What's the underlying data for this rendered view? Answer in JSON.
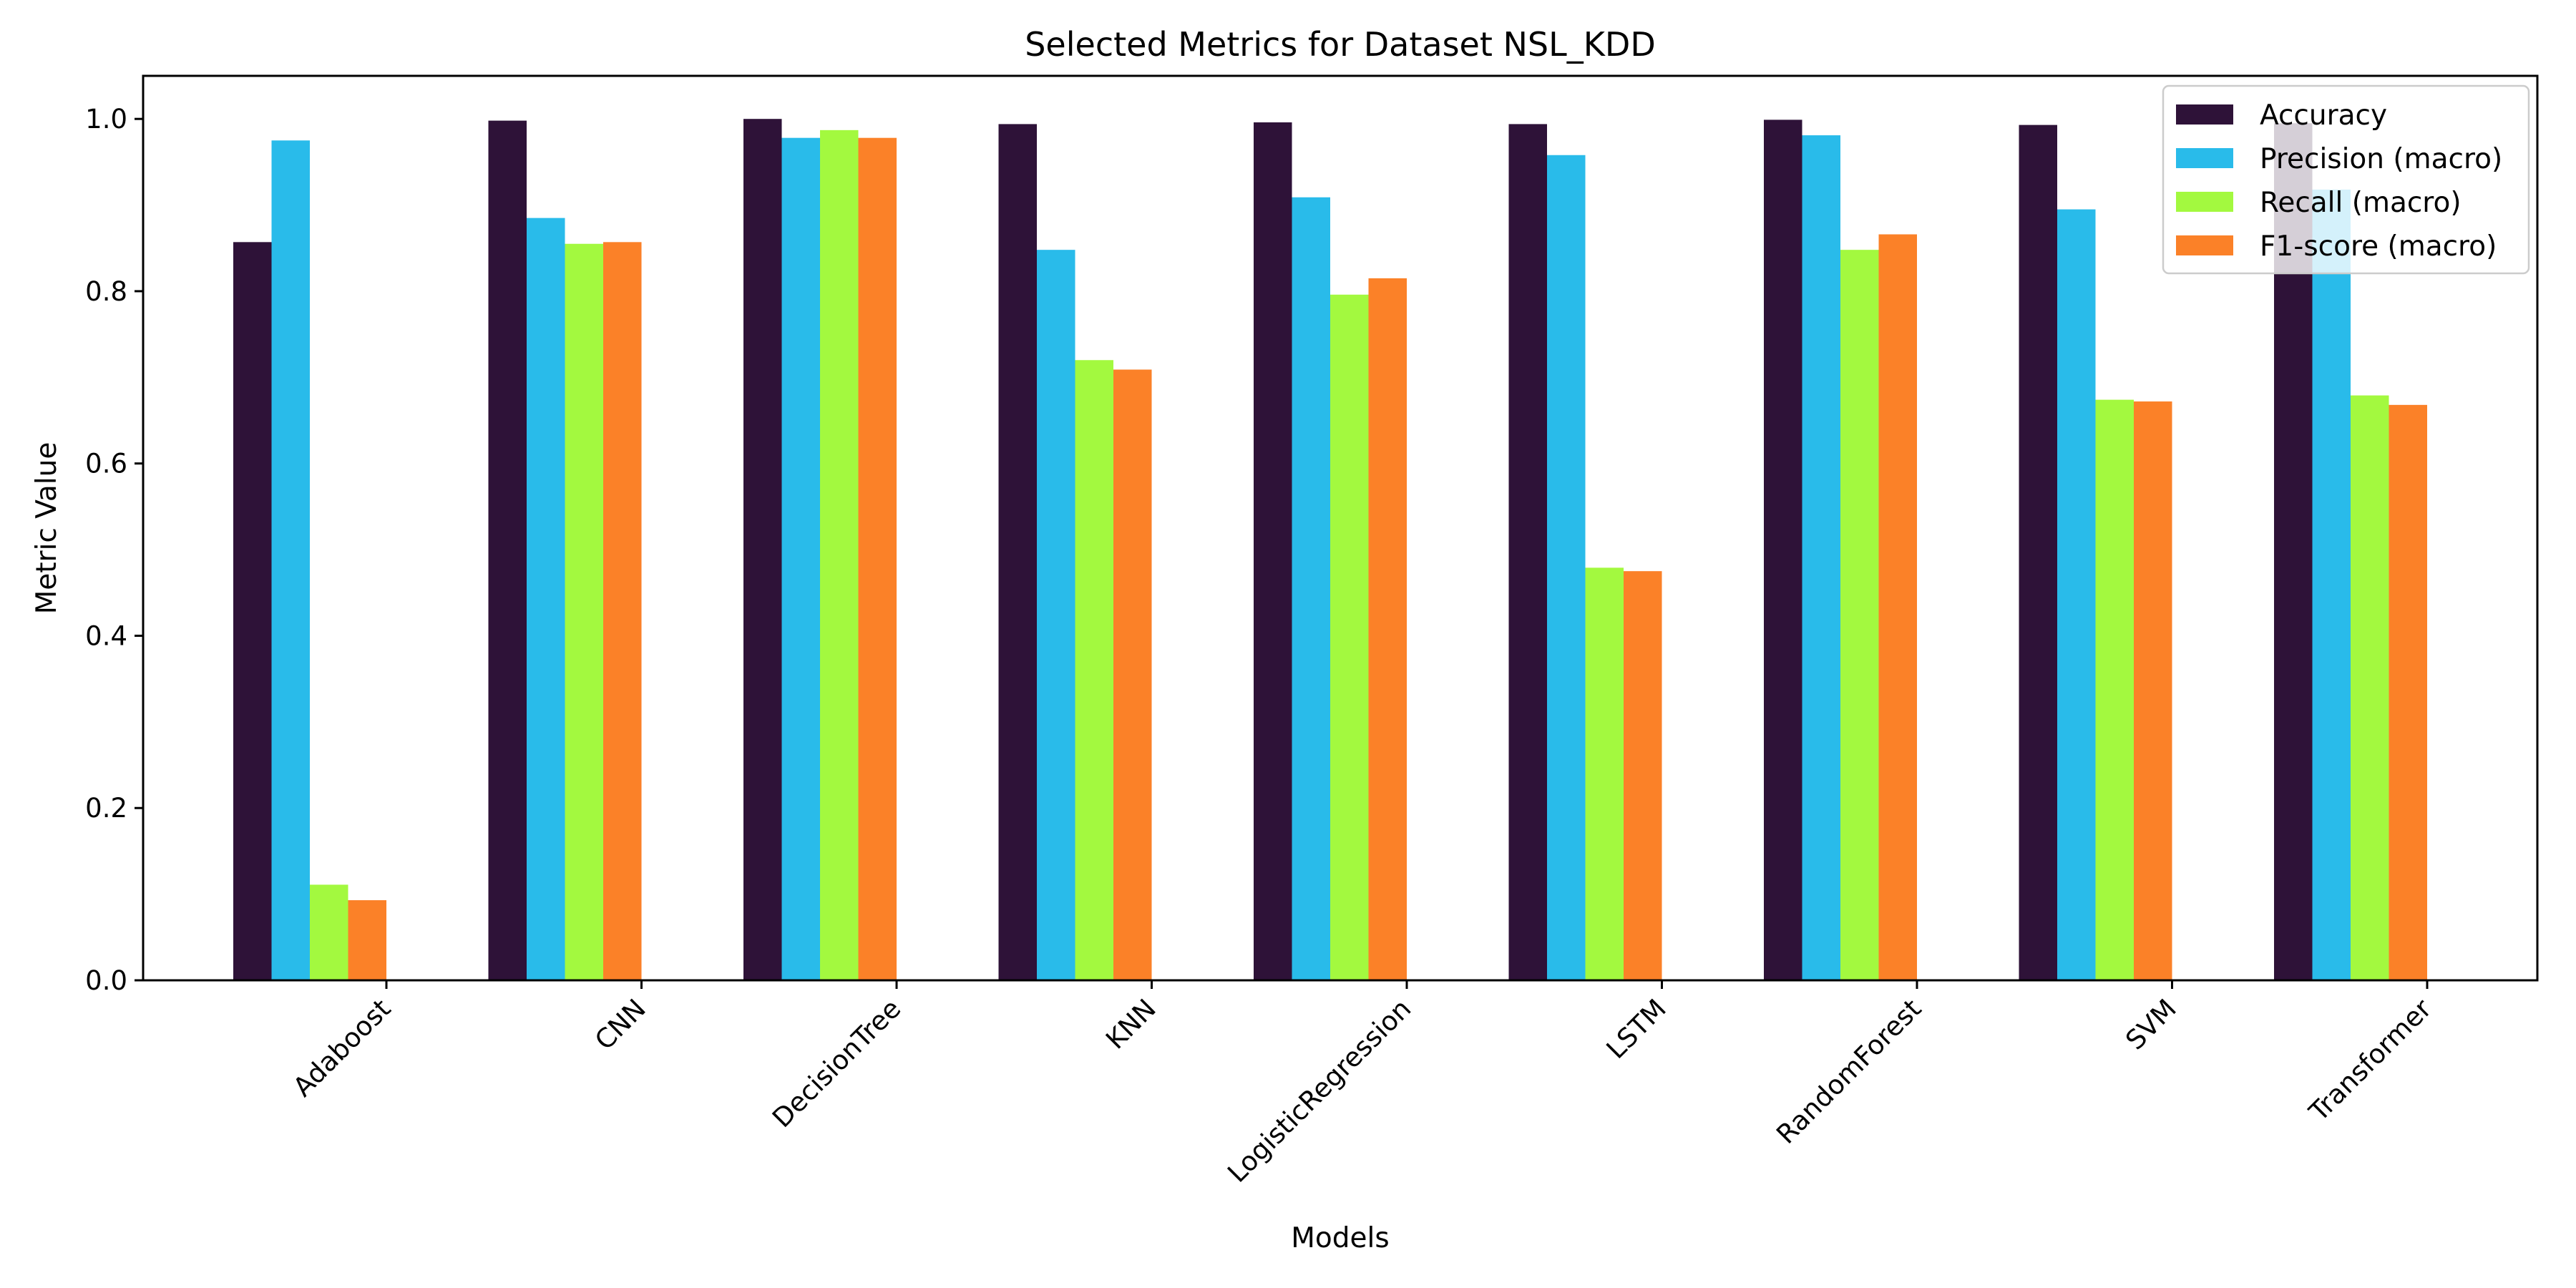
{
  "chart_data": {
    "type": "bar",
    "title": "Selected Metrics for Dataset NSL_KDD",
    "xlabel": "Models",
    "ylabel": "Metric Value",
    "ylim": [
      0,
      1.05
    ],
    "yticks": [
      "0.0",
      "0.2",
      "0.4",
      "0.6",
      "0.8",
      "1.0"
    ],
    "grid": false,
    "legend_position": "top-right",
    "categories": [
      "Adaboost",
      "CNN",
      "DecisionTree",
      "KNN",
      "LogisticRegression",
      "LSTM",
      "RandomForest",
      "SVM",
      "Transformer"
    ],
    "series": [
      {
        "name": "Accuracy",
        "color": "#2e1238",
        "values": [
          0.857,
          0.998,
          1.0,
          0.994,
          0.996,
          0.994,
          0.999,
          0.993,
          0.995
        ]
      },
      {
        "name": "Precision (macro)",
        "color": "#29bbea",
        "values": [
          0.975,
          0.885,
          0.978,
          0.848,
          0.909,
          0.958,
          0.981,
          0.895,
          0.918
        ]
      },
      {
        "name": "Recall (macro)",
        "color": "#a3f93f",
        "values": [
          0.111,
          0.855,
          0.987,
          0.72,
          0.796,
          0.479,
          0.848,
          0.674,
          0.679
        ]
      },
      {
        "name": "F1-score (macro)",
        "color": "#fb8128",
        "values": [
          0.093,
          0.857,
          0.978,
          0.709,
          0.815,
          0.475,
          0.866,
          0.672,
          0.668
        ]
      }
    ]
  }
}
